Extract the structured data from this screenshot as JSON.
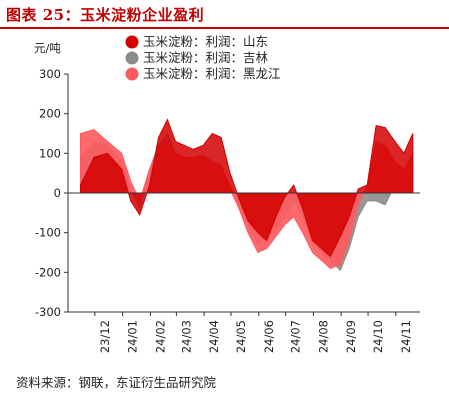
{
  "header": {
    "title": "图表 25：玉米淀粉企业盈利"
  },
  "footer": {
    "source": "资料来源：钢联，东证衍生品研究院"
  },
  "colors": {
    "shandong": "#d40000",
    "jilin": "#8c8c8c",
    "heilongjiang": "#ff5a5f",
    "title": "#c00000"
  },
  "chart_data": {
    "type": "area",
    "ylabel": "元/吨",
    "ylim": [
      -300,
      300
    ],
    "yticks": [
      -300,
      -200,
      -100,
      0,
      100,
      200,
      300
    ],
    "x_range": [
      "2023-11",
      "2024-11"
    ],
    "xticks": [
      "23/12",
      "24/01",
      "24/02",
      "24/03",
      "24/04",
      "24/05",
      "24/06",
      "24/07",
      "24/08",
      "24/09",
      "24/10",
      "24/11"
    ],
    "x": [
      "2023-11-15",
      "2023-11-30",
      "2023-12-15",
      "2023-12-31",
      "2024-01-10",
      "2024-01-20",
      "2024-01-31",
      "2024-02-10",
      "2024-02-20",
      "2024-02-29",
      "2024-03-10",
      "2024-03-20",
      "2024-03-31",
      "2024-04-10",
      "2024-04-20",
      "2024-04-30",
      "2024-05-10",
      "2024-05-20",
      "2024-05-31",
      "2024-06-10",
      "2024-06-20",
      "2024-06-30",
      "2024-07-10",
      "2024-07-20",
      "2024-07-31",
      "2024-08-10",
      "2024-08-20",
      "2024-08-31",
      "2024-09-10",
      "2024-09-20",
      "2024-09-30",
      "2024-10-10",
      "2024-10-20",
      "2024-10-31",
      "2024-11-10",
      "2024-11-20"
    ],
    "series": [
      {
        "name": "玉米淀粉：利润：山东",
        "values": [
          20,
          90,
          100,
          60,
          -20,
          -55,
          20,
          140,
          185,
          130,
          120,
          110,
          120,
          150,
          140,
          50,
          -15,
          -70,
          -100,
          -120,
          -60,
          -10,
          20,
          -40,
          -120,
          -140,
          -160,
          -110,
          -60,
          10,
          20,
          170,
          165,
          130,
          100,
          150
        ]
      },
      {
        "name": "玉米淀粉：利润：吉林",
        "values": [
          90,
          130,
          120,
          80,
          10,
          -40,
          60,
          120,
          150,
          100,
          80,
          70,
          60,
          40,
          60,
          20,
          -30,
          -80,
          -130,
          -110,
          -90,
          -60,
          -20,
          -60,
          -120,
          -150,
          -170,
          -195,
          -140,
          -60,
          -20,
          -20,
          -30,
          20,
          50,
          60
        ]
      },
      {
        "name": "玉米淀粉：利润：黑龙江",
        "values": [
          150,
          160,
          130,
          100,
          30,
          -20,
          60,
          110,
          130,
          100,
          90,
          90,
          95,
          80,
          70,
          10,
          -40,
          -100,
          -150,
          -140,
          -110,
          -80,
          -60,
          -100,
          -150,
          -170,
          -190,
          -180,
          -120,
          -30,
          20,
          130,
          120,
          80,
          60,
          100
        ]
      }
    ],
    "legend_position": "top-center"
  }
}
